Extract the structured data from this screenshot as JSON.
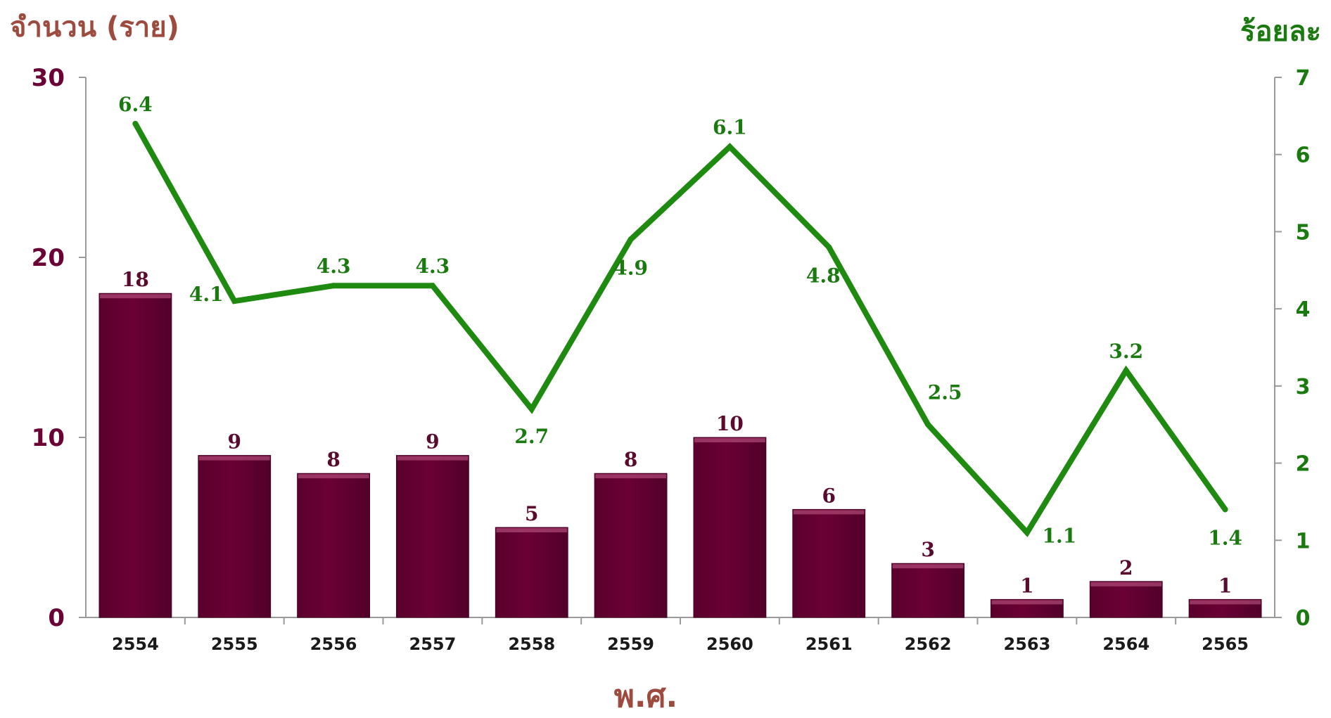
{
  "chart_data": {
    "type": "bar",
    "left_axis_title": "จำนวน (ราย)",
    "right_axis_title": "ร้อยละ",
    "xlabel": "พ.ศ.",
    "categories": [
      "2554",
      "2555",
      "2556",
      "2557",
      "2558",
      "2559",
      "2560",
      "2561",
      "2562",
      "2563",
      "2564",
      "2565"
    ],
    "series": [
      {
        "type": "bar",
        "axis": "left",
        "values": [
          18,
          9,
          8,
          9,
          5,
          8,
          10,
          6,
          3,
          1,
          2,
          1
        ],
        "labels": [
          "18",
          "9",
          "8",
          "9",
          "5",
          "8",
          "10",
          "6",
          "3",
          "1",
          "2",
          "1"
        ]
      },
      {
        "type": "line",
        "axis": "right",
        "values": [
          6.4,
          4.1,
          4.3,
          4.3,
          2.7,
          4.9,
          6.1,
          4.8,
          2.5,
          1.1,
          3.2,
          1.4
        ],
        "labels": [
          "6.4",
          "4.1",
          "4.3",
          "4.3",
          "2.7",
          "4.9",
          "6.1",
          "4.8",
          "2.5",
          "1.1",
          "3.2",
          "1.4"
        ]
      }
    ],
    "ylim": [
      0,
      30
    ],
    "yticks": [
      "0",
      "10",
      "20",
      "30"
    ],
    "y2lim": [
      0,
      7
    ],
    "y2ticks": [
      "0",
      "1",
      "2",
      "3",
      "4",
      "5",
      "6",
      "7"
    ],
    "grid": false,
    "legend": "none",
    "colors": {
      "bar": "#6b0035",
      "bar_label": "#5a0a2e",
      "line": "#1f8a10",
      "left_axis_text": "#6b0035",
      "left_title": "#9e4b3f",
      "right_axis_text": "#1a7a10",
      "xlabel": "#9e4b3f",
      "axis_line": "#9a9a9a"
    }
  }
}
